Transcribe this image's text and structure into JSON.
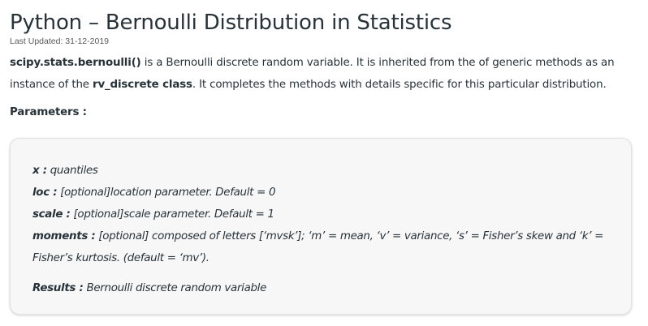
{
  "article": {
    "title": "Python – Bernoulli Distribution in Statistics",
    "last_updated": "Last Updated: 31-12-2019",
    "intro": {
      "code_name": "scipy.stats.bernoulli()",
      "text_1": " is a Bernoulli discrete random variable. It is inherited from the of generic methods as an instance of the ",
      "class_name": "rv_discrete class",
      "text_2": ". It completes the methods with details specific for this particular distribution."
    },
    "parameters_heading": "Parameters :",
    "parameters": [
      {
        "name": "x :",
        "description": " quantiles"
      },
      {
        "name": "loc :",
        "description": " [optional]location parameter. Default = 0"
      },
      {
        "name": "scale :",
        "description": " [optional]scale parameter. Default = 1"
      },
      {
        "name": "moments :",
        "description": " [optional] composed of letters [‘mvsk’]; ‘m’ = mean, ‘v’ = variance, ‘s’ = Fisher’s skew and ‘k’ = Fisher’s kurtosis. (default = ‘mv’)."
      }
    ],
    "results": {
      "name": "Results :",
      "description": " Bernoulli discrete random variable"
    }
  }
}
